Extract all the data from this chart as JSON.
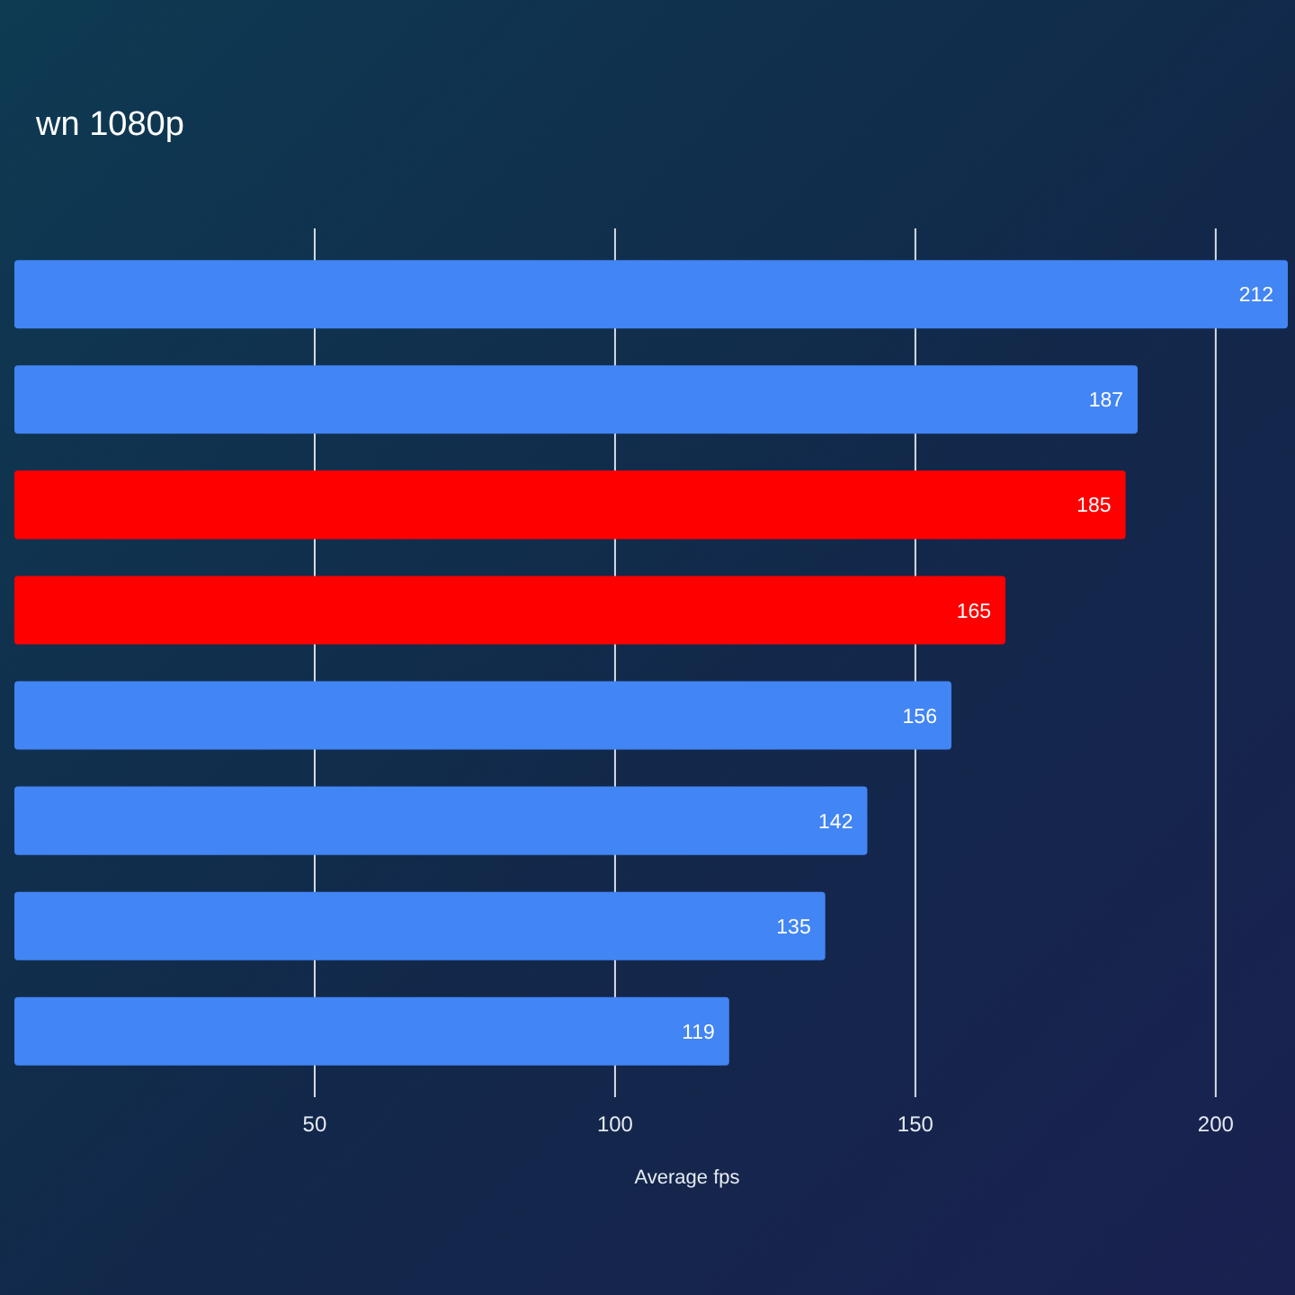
{
  "chart_data": {
    "type": "bar",
    "orientation": "horizontal",
    "title": "wn 1080p",
    "xlabel": "Average fps",
    "categories": [
      null,
      null,
      null,
      null,
      null,
      null,
      null,
      null
    ],
    "values": [
      212,
      187,
      185,
      165,
      156,
      142,
      135,
      119
    ],
    "colors": [
      "#4285f4",
      "#4285f4",
      "#ff0000",
      "#ff0000",
      "#4285f4",
      "#4285f4",
      "#4285f4",
      "#4285f4"
    ],
    "xlim": [
      0,
      212
    ],
    "xticks": [
      50,
      100,
      150,
      200
    ],
    "grid": "x",
    "data_labels": true
  }
}
